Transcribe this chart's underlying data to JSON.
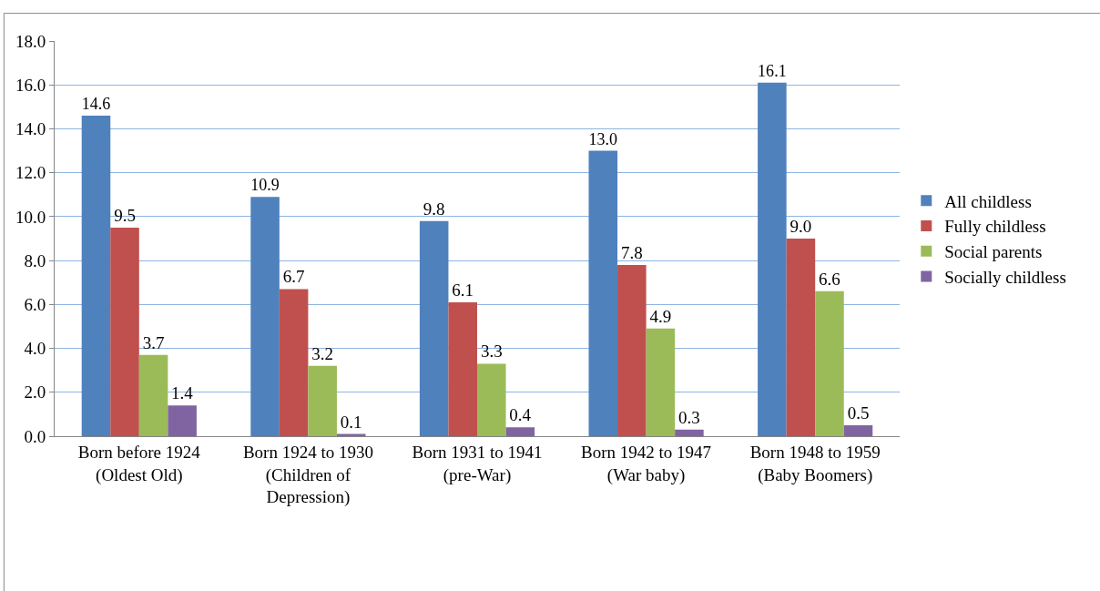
{
  "chart_data": {
    "type": "bar",
    "categories": [
      "Born before 1924 (Oldest Old)",
      "Born 1924 to 1930 (Children of Depression)",
      "Born 1931 to 1941 (pre-War)",
      "Born 1942 to 1947 (War baby)",
      "Born 1948 to 1959 (Baby Boomers)"
    ],
    "series": [
      {
        "name": "All childless",
        "color": "#4f81bd",
        "values": [
          14.6,
          10.9,
          9.8,
          13.0,
          16.1
        ],
        "value_labels": [
          "14.6",
          "10.9",
          "9.8",
          "13.0",
          "16.1"
        ]
      },
      {
        "name": "Fully childless",
        "color": "#c0504d",
        "values": [
          9.5,
          6.7,
          6.1,
          7.8,
          9.0
        ],
        "value_labels": [
          "9.5",
          "6.7",
          "6.1",
          "7.8",
          "9.0"
        ]
      },
      {
        "name": "Social parents",
        "color": "#9bbb59",
        "values": [
          3.7,
          3.2,
          3.3,
          4.9,
          6.6
        ],
        "value_labels": [
          "3.7",
          "3.2",
          "3.3",
          "4.9",
          "6.6"
        ]
      },
      {
        "name": "Socially childless",
        "color": "#8064a2",
        "values": [
          1.4,
          0.1,
          0.4,
          0.3,
          0.5
        ],
        "value_labels": [
          "1.4",
          "0.1",
          "0.4",
          "0.3",
          "0.5"
        ]
      }
    ],
    "ylim": [
      0,
      18
    ],
    "yticks": [
      {
        "value": 0,
        "label": "0.0"
      },
      {
        "value": 2,
        "label": "2.0"
      },
      {
        "value": 4,
        "label": "4.0"
      },
      {
        "value": 6,
        "label": "6.0"
      },
      {
        "value": 8,
        "label": "8.0"
      },
      {
        "value": 10,
        "label": "10.0"
      },
      {
        "value": 12,
        "label": "12.0"
      },
      {
        "value": 14,
        "label": "14.0"
      },
      {
        "value": 16,
        "label": "16.0"
      },
      {
        "value": 18,
        "label": "18.0"
      }
    ],
    "grid": "y",
    "legend": "right"
  }
}
